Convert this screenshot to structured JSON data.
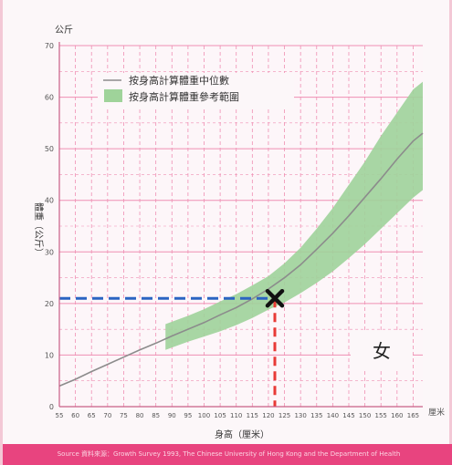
{
  "chart_data": {
    "type": "line",
    "y_unit_top": "公斤",
    "ylabel": "體重（公斤）",
    "xlabel": "身高（厘米）",
    "x_unit_right": "厘米",
    "xlim": [
      55,
      168
    ],
    "ylim": [
      0,
      70
    ],
    "x_ticks": [
      "55",
      "60",
      "65",
      "70",
      "75",
      "80",
      "85",
      "90",
      "95",
      "100",
      "105",
      "110",
      "115",
      "120",
      "125",
      "130",
      "135",
      "140",
      "145",
      "150",
      "155",
      "160",
      "165"
    ],
    "y_ticks": [
      "0",
      "10",
      "20",
      "30",
      "40",
      "50",
      "60",
      "70"
    ],
    "legend": {
      "median_label": "按身高計算體重中位數",
      "range_label": "按身高計算體重參考範圍",
      "placement": "top-left"
    },
    "sex_label": "女",
    "series": [
      {
        "name": "按身高計算體重中位數",
        "x": [
          55,
          60,
          65,
          70,
          75,
          80,
          85,
          90,
          95,
          100,
          105,
          110,
          115,
          120,
          125,
          130,
          135,
          140,
          145,
          150,
          155,
          160,
          165,
          168
        ],
        "y": [
          4.0,
          5.3,
          6.8,
          8.2,
          9.6,
          11.0,
          12.3,
          13.7,
          15.0,
          16.3,
          17.8,
          19.2,
          20.9,
          22.8,
          25.0,
          27.5,
          30.5,
          33.6,
          37.0,
          40.6,
          44.2,
          48.0,
          51.5,
          53.0
        ]
      },
      {
        "name": "按身高計算體重參考範圍",
        "x": [
          88,
          95,
          100,
          105,
          110,
          115,
          120,
          125,
          130,
          135,
          140,
          145,
          150,
          155,
          160,
          165,
          168
        ],
        "y_low": [
          11.0,
          12.6,
          13.6,
          14.6,
          15.8,
          17.2,
          18.8,
          20.2,
          22.0,
          24.0,
          26.2,
          28.8,
          31.5,
          34.5,
          37.5,
          40.5,
          42.0
        ],
        "y_high": [
          16.0,
          17.6,
          18.9,
          20.4,
          21.8,
          23.5,
          25.3,
          27.8,
          30.8,
          34.5,
          38.5,
          43.0,
          47.5,
          52.5,
          57.0,
          61.5,
          63.0
        ]
      }
    ],
    "marker": {
      "x": 122,
      "y": 21
    },
    "colors": {
      "median": "#8c8c8c",
      "band": "#9fd39a",
      "grid": "#ef8fb3",
      "horizontal_guide": "#2b64c2",
      "vertical_guide": "#e83a36",
      "marker": "#111111",
      "footer": "#e8447f"
    }
  },
  "footer": {
    "source": "Source 資料來源：Growth Survey 1993, The Chinese University of Hong Kong and the Department of Health"
  }
}
